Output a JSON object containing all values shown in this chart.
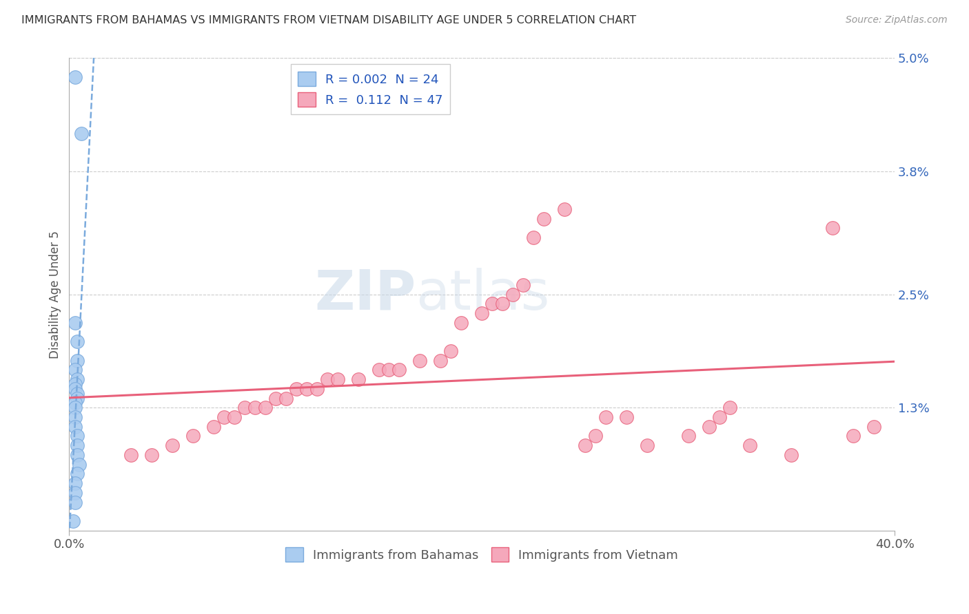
{
  "title": "IMMIGRANTS FROM BAHAMAS VS IMMIGRANTS FROM VIETNAM DISABILITY AGE UNDER 5 CORRELATION CHART",
  "source": "Source: ZipAtlas.com",
  "ylabel": "Disability Age Under 5",
  "xmin": 0.0,
  "xmax": 0.4,
  "ymin": 0.0,
  "ymax": 0.05,
  "yticks": [
    0.013,
    0.025,
    0.038,
    0.05
  ],
  "ytick_labels": [
    "1.3%",
    "2.5%",
    "3.8%",
    "5.0%"
  ],
  "xticks": [
    0.0,
    0.4
  ],
  "xtick_labels": [
    "0.0%",
    "40.0%"
  ],
  "legend_r_bahamas": "0.002",
  "legend_n_bahamas": "24",
  "legend_r_vietnam": "0.112",
  "legend_n_vietnam": "47",
  "bahamas_color": "#aaccf0",
  "vietnam_color": "#f5a8bb",
  "trendline_bahamas_color": "#7aaadd",
  "trendline_vietnam_color": "#e8607a",
  "watermark_zip": "ZIP",
  "watermark_atlas": "atlas",
  "background_color": "#ffffff",
  "bahamas_x": [
    0.003,
    0.006,
    0.003,
    0.004,
    0.004,
    0.003,
    0.004,
    0.003,
    0.003,
    0.004,
    0.004,
    0.003,
    0.003,
    0.003,
    0.003,
    0.004,
    0.004,
    0.004,
    0.005,
    0.004,
    0.003,
    0.003,
    0.003,
    0.002
  ],
  "bahamas_y": [
    0.048,
    0.042,
    0.022,
    0.02,
    0.018,
    0.017,
    0.016,
    0.0155,
    0.015,
    0.0145,
    0.014,
    0.0135,
    0.013,
    0.012,
    0.011,
    0.01,
    0.009,
    0.008,
    0.007,
    0.006,
    0.005,
    0.004,
    0.003,
    0.001
  ],
  "vietnam_x": [
    0.03,
    0.04,
    0.05,
    0.06,
    0.07,
    0.075,
    0.08,
    0.085,
    0.09,
    0.095,
    0.1,
    0.105,
    0.11,
    0.115,
    0.12,
    0.125,
    0.13,
    0.14,
    0.15,
    0.155,
    0.16,
    0.17,
    0.18,
    0.185,
    0.19,
    0.2,
    0.205,
    0.21,
    0.215,
    0.22,
    0.225,
    0.23,
    0.24,
    0.25,
    0.255,
    0.26,
    0.27,
    0.28,
    0.3,
    0.31,
    0.315,
    0.32,
    0.33,
    0.35,
    0.37,
    0.38,
    0.39
  ],
  "vietnam_y": [
    0.008,
    0.008,
    0.009,
    0.01,
    0.011,
    0.012,
    0.012,
    0.013,
    0.013,
    0.013,
    0.014,
    0.014,
    0.015,
    0.015,
    0.015,
    0.016,
    0.016,
    0.016,
    0.017,
    0.017,
    0.017,
    0.018,
    0.018,
    0.019,
    0.022,
    0.023,
    0.024,
    0.024,
    0.025,
    0.026,
    0.031,
    0.033,
    0.034,
    0.009,
    0.01,
    0.012,
    0.012,
    0.009,
    0.01,
    0.011,
    0.012,
    0.013,
    0.009,
    0.008,
    0.032,
    0.01,
    0.011
  ]
}
